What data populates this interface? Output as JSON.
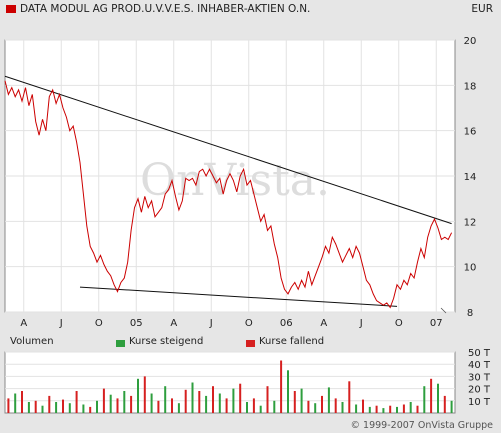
{
  "header": {
    "title": "DATA MODUL AG PROD.U.V.V.E.S. INHABER-AKTIEN O.N.",
    "currency": "EUR"
  },
  "watermark": "OnVista.",
  "copyright": "© 1999-2007 OnVista Gruppe",
  "colors": {
    "price": "#cc0000",
    "rising": "#2e9e3e",
    "falling": "#d62020",
    "background": "#e6e6e6",
    "plot": "#ffffff"
  },
  "legend": {
    "volume_label": "Volumen",
    "rising_label": "Kurse steigend",
    "falling_label": "Kurse fallend"
  },
  "chart_data": [
    {
      "type": "line",
      "name": "price",
      "x_tick_labels": [
        "A",
        "J",
        "O",
        "05",
        "A",
        "J",
        "O",
        "06",
        "A",
        "J",
        "O",
        "07"
      ],
      "y_ticks": [
        8,
        10,
        12,
        14,
        16,
        18,
        20
      ],
      "ylim": [
        8,
        20
      ],
      "xlim": [
        0,
        132
      ],
      "series": [
        {
          "points": [
            [
              0,
              18.2
            ],
            [
              1,
              17.6
            ],
            [
              2,
              17.9
            ],
            [
              3,
              17.5
            ],
            [
              4,
              17.8
            ],
            [
              5,
              17.3
            ],
            [
              6,
              17.9
            ],
            [
              7,
              17.1
            ],
            [
              8,
              17.6
            ],
            [
              9,
              16.4
            ],
            [
              10,
              15.8
            ],
            [
              11,
              16.5
            ],
            [
              12,
              16.0
            ],
            [
              13,
              17.5
            ],
            [
              14,
              17.8
            ],
            [
              15,
              17.2
            ],
            [
              16,
              17.6
            ],
            [
              17,
              17.0
            ],
            [
              18,
              16.6
            ],
            [
              19,
              16.0
            ],
            [
              20,
              16.2
            ],
            [
              21,
              15.5
            ],
            [
              22,
              14.6
            ],
            [
              23,
              13.2
            ],
            [
              24,
              11.8
            ],
            [
              25,
              10.9
            ],
            [
              26,
              10.6
            ],
            [
              27,
              10.2
            ],
            [
              28,
              10.5
            ],
            [
              29,
              10.1
            ],
            [
              30,
              9.8
            ],
            [
              31,
              9.6
            ],
            [
              32,
              9.2
            ],
            [
              33,
              8.9
            ],
            [
              34,
              9.3
            ],
            [
              35,
              9.5
            ],
            [
              36,
              10.2
            ],
            [
              37,
              11.6
            ],
            [
              38,
              12.6
            ],
            [
              39,
              13.0
            ],
            [
              40,
              12.4
            ],
            [
              41,
              13.1
            ],
            [
              42,
              12.6
            ],
            [
              43,
              12.9
            ],
            [
              44,
              12.2
            ],
            [
              45,
              12.4
            ],
            [
              46,
              12.6
            ],
            [
              47,
              13.2
            ],
            [
              48,
              13.4
            ],
            [
              49,
              13.8
            ],
            [
              50,
              13.1
            ],
            [
              51,
              12.5
            ],
            [
              52,
              12.9
            ],
            [
              53,
              13.9
            ],
            [
              54,
              13.8
            ],
            [
              55,
              13.9
            ],
            [
              56,
              13.6
            ],
            [
              57,
              14.2
            ],
            [
              58,
              14.3
            ],
            [
              59,
              14.0
            ],
            [
              60,
              14.3
            ],
            [
              61,
              14.0
            ],
            [
              62,
              13.7
            ],
            [
              63,
              13.9
            ],
            [
              64,
              13.2
            ],
            [
              65,
              13.8
            ],
            [
              66,
              14.1
            ],
            [
              67,
              13.8
            ],
            [
              68,
              13.3
            ],
            [
              69,
              14.0
            ],
            [
              70,
              14.3
            ],
            [
              71,
              13.6
            ],
            [
              72,
              13.8
            ],
            [
              73,
              13.2
            ],
            [
              74,
              12.6
            ],
            [
              75,
              12.0
            ],
            [
              76,
              12.3
            ],
            [
              77,
              11.6
            ],
            [
              78,
              11.8
            ],
            [
              79,
              11.0
            ],
            [
              80,
              10.4
            ],
            [
              81,
              9.5
            ],
            [
              82,
              9.0
            ],
            [
              83,
              8.8
            ],
            [
              84,
              9.1
            ],
            [
              85,
              9.3
            ],
            [
              86,
              9.0
            ],
            [
              87,
              9.4
            ],
            [
              88,
              9.1
            ],
            [
              89,
              9.8
            ],
            [
              90,
              9.2
            ],
            [
              91,
              9.6
            ],
            [
              92,
              10.0
            ],
            [
              93,
              10.4
            ],
            [
              94,
              10.9
            ],
            [
              95,
              10.6
            ],
            [
              96,
              11.3
            ],
            [
              97,
              11.0
            ],
            [
              98,
              10.6
            ],
            [
              99,
              10.2
            ],
            [
              100,
              10.5
            ],
            [
              101,
              10.8
            ],
            [
              102,
              10.4
            ],
            [
              103,
              10.9
            ],
            [
              104,
              10.6
            ],
            [
              105,
              10.0
            ],
            [
              106,
              9.4
            ],
            [
              107,
              9.2
            ],
            [
              108,
              8.8
            ],
            [
              109,
              8.5
            ],
            [
              110,
              8.4
            ],
            [
              111,
              8.3
            ],
            [
              112,
              8.4
            ],
            [
              113,
              8.2
            ],
            [
              114,
              8.6
            ],
            [
              115,
              9.2
            ],
            [
              116,
              9.0
            ],
            [
              117,
              9.4
            ],
            [
              118,
              9.2
            ],
            [
              119,
              9.7
            ],
            [
              120,
              9.5
            ],
            [
              121,
              10.2
            ],
            [
              122,
              10.8
            ],
            [
              123,
              10.4
            ],
            [
              124,
              11.3
            ],
            [
              125,
              11.8
            ],
            [
              126,
              12.1
            ],
            [
              127,
              11.7
            ],
            [
              128,
              11.2
            ],
            [
              129,
              11.3
            ],
            [
              130,
              11.2
            ],
            [
              131,
              11.5
            ]
          ]
        }
      ],
      "trendlines": [
        {
          "from": [
            0,
            18.4
          ],
          "to": [
            131,
            11.9
          ]
        },
        {
          "from": [
            22,
            9.1
          ],
          "to": [
            115,
            8.25
          ]
        }
      ]
    },
    {
      "type": "bar",
      "name": "volume",
      "y_tick_labels": [
        "50 T",
        "40 T",
        "30 T",
        "20 T",
        "10 T"
      ],
      "y_ticks": [
        50,
        40,
        30,
        20,
        10
      ],
      "ylim": [
        0,
        50
      ],
      "xlim": [
        0,
        132
      ],
      "bars": [
        [
          1,
          12,
          "falling"
        ],
        [
          3,
          16,
          "rising"
        ],
        [
          5,
          18,
          "falling"
        ],
        [
          7,
          9,
          "rising"
        ],
        [
          9,
          10,
          "falling"
        ],
        [
          11,
          6,
          "rising"
        ],
        [
          13,
          14,
          "falling"
        ],
        [
          15,
          9,
          "rising"
        ],
        [
          17,
          11,
          "falling"
        ],
        [
          19,
          8,
          "rising"
        ],
        [
          21,
          18,
          "falling"
        ],
        [
          23,
          7,
          "rising"
        ],
        [
          25,
          5,
          "falling"
        ],
        [
          27,
          10,
          "rising"
        ],
        [
          29,
          20,
          "falling"
        ],
        [
          31,
          15,
          "rising"
        ],
        [
          33,
          12,
          "falling"
        ],
        [
          35,
          18,
          "rising"
        ],
        [
          37,
          14,
          "falling"
        ],
        [
          39,
          28,
          "rising"
        ],
        [
          41,
          30,
          "falling"
        ],
        [
          43,
          16,
          "rising"
        ],
        [
          45,
          10,
          "falling"
        ],
        [
          47,
          22,
          "rising"
        ],
        [
          49,
          12,
          "falling"
        ],
        [
          51,
          8,
          "rising"
        ],
        [
          53,
          19,
          "falling"
        ],
        [
          55,
          25,
          "rising"
        ],
        [
          57,
          18,
          "falling"
        ],
        [
          59,
          14,
          "rising"
        ],
        [
          61,
          22,
          "falling"
        ],
        [
          63,
          16,
          "rising"
        ],
        [
          65,
          12,
          "falling"
        ],
        [
          67,
          20,
          "rising"
        ],
        [
          69,
          24,
          "falling"
        ],
        [
          71,
          9,
          "rising"
        ],
        [
          73,
          12,
          "falling"
        ],
        [
          75,
          6,
          "rising"
        ],
        [
          77,
          22,
          "falling"
        ],
        [
          79,
          10,
          "rising"
        ],
        [
          81,
          43,
          "falling"
        ],
        [
          83,
          35,
          "rising"
        ],
        [
          85,
          18,
          "falling"
        ],
        [
          87,
          20,
          "rising"
        ],
        [
          89,
          10,
          "falling"
        ],
        [
          91,
          8,
          "rising"
        ],
        [
          93,
          14,
          "falling"
        ],
        [
          95,
          21,
          "rising"
        ],
        [
          97,
          12,
          "falling"
        ],
        [
          99,
          9,
          "rising"
        ],
        [
          101,
          26,
          "falling"
        ],
        [
          103,
          7,
          "rising"
        ],
        [
          105,
          11,
          "falling"
        ],
        [
          107,
          5,
          "rising"
        ],
        [
          109,
          6,
          "falling"
        ],
        [
          111,
          4,
          "rising"
        ],
        [
          113,
          6,
          "falling"
        ],
        [
          115,
          5,
          "rising"
        ],
        [
          117,
          7,
          "falling"
        ],
        [
          119,
          9,
          "rising"
        ],
        [
          121,
          6,
          "falling"
        ],
        [
          123,
          22,
          "rising"
        ],
        [
          125,
          28,
          "falling"
        ],
        [
          127,
          24,
          "rising"
        ],
        [
          129,
          14,
          "falling"
        ],
        [
          131,
          10,
          "rising"
        ]
      ]
    }
  ]
}
